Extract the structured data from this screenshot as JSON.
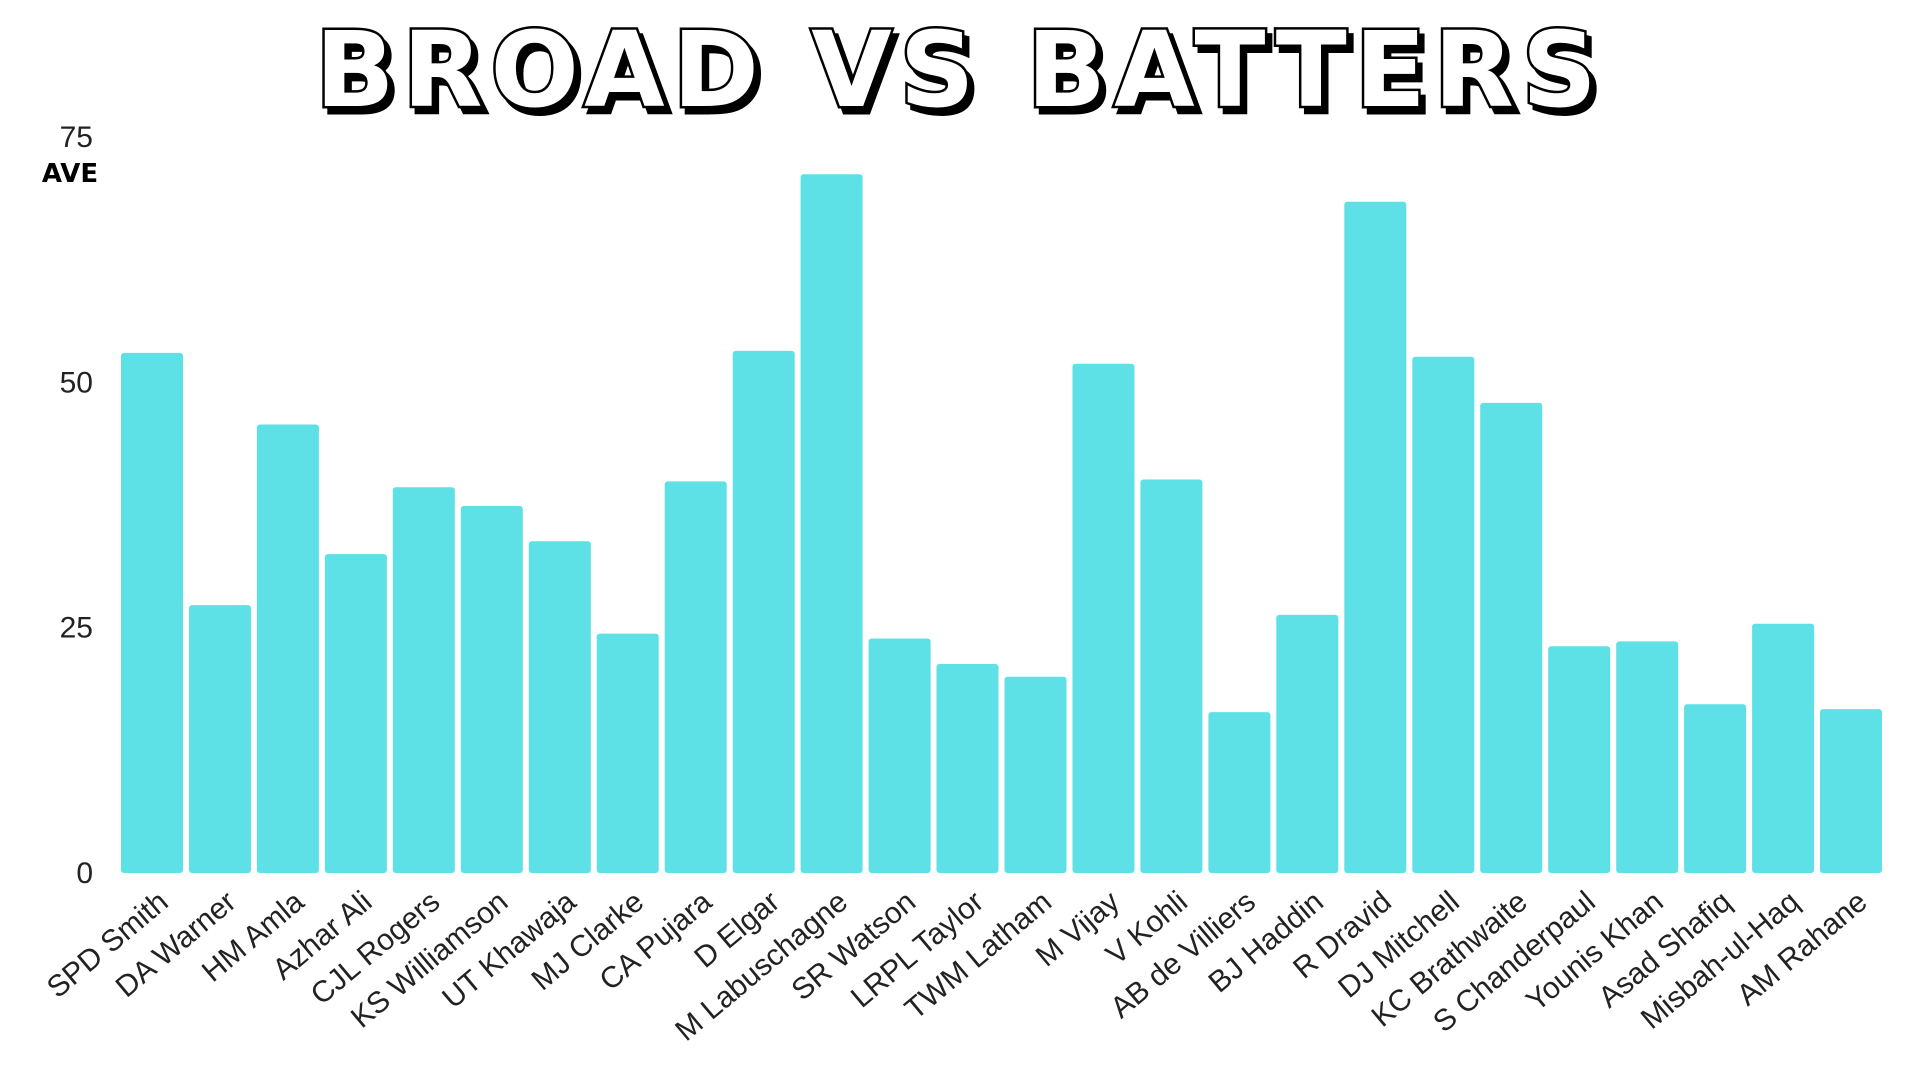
{
  "chart_data": {
    "type": "bar",
    "title": "BROAD VS BATTERS",
    "ylabel": "AVE",
    "ylim": [
      0,
      75
    ],
    "yticks": [
      0,
      25,
      50,
      75
    ],
    "grid": false,
    "bar_color": "#5DE0E6",
    "categories": [
      "SPD Smith",
      "DA Warner",
      "HM Amla",
      "Azhar Ali",
      "CJL Rogers",
      "KS Williamson",
      "UT Khawaja",
      "MJ Clarke",
      "CA Pujara",
      "D Elgar",
      "M Labuschagne",
      "SR Watson",
      "LRPL Taylor",
      "TWM Latham",
      "M Vijay",
      "V Kohli",
      "AB de Villiers",
      "BJ Haddin",
      "R Dravid",
      "DJ Mitchell",
      "KC Brathwaite",
      "S Chanderpaul",
      "Younis Khan",
      "Asad Shafiq",
      "Misbah-ul-Haq",
      "AM Rahane"
    ],
    "values": [
      53.0,
      27.3,
      45.7,
      32.5,
      39.3,
      37.4,
      33.8,
      24.4,
      39.9,
      53.2,
      71.2,
      23.9,
      21.3,
      20.0,
      51.9,
      40.1,
      16.4,
      26.3,
      68.4,
      52.6,
      47.9,
      23.1,
      23.6,
      17.2,
      25.4,
      16.7
    ]
  }
}
